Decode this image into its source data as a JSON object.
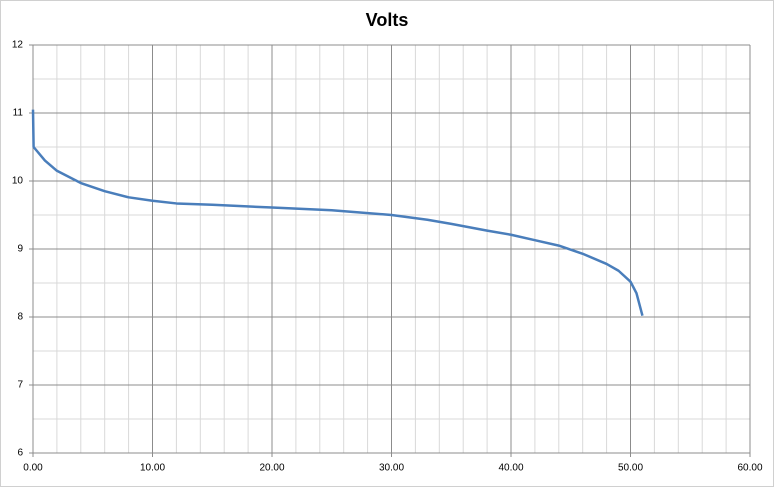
{
  "chart_data": {
    "type": "line",
    "title": "Volts",
    "x": [
      0,
      0.05,
      1,
      2,
      4,
      6,
      8,
      10,
      12,
      15,
      20,
      25,
      30,
      33,
      35,
      38,
      40,
      42,
      44,
      46,
      48,
      49,
      50,
      50.5,
      51
    ],
    "series": [
      {
        "color": "#4a7ebb",
        "values": [
          11.05,
          10.5,
          10.3,
          10.15,
          9.97,
          9.85,
          9.76,
          9.71,
          9.67,
          9.65,
          9.61,
          9.57,
          9.5,
          9.43,
          9.37,
          9.27,
          9.21,
          9.13,
          9.05,
          8.93,
          8.78,
          8.68,
          8.52,
          8.35,
          8.02
        ]
      }
    ],
    "xlim": [
      0,
      60
    ],
    "xticks": [
      {
        "value": 0,
        "label": "0.00"
      },
      {
        "value": 10,
        "label": "10.00"
      },
      {
        "value": 20,
        "label": "20.00"
      },
      {
        "value": 30,
        "label": "30.00"
      },
      {
        "value": 40,
        "label": "40.00"
      },
      {
        "value": 50,
        "label": "50.00"
      },
      {
        "value": 60,
        "label": "60.00"
      }
    ],
    "ylim": [
      6,
      12
    ],
    "yticks": [
      6,
      7,
      8,
      9,
      10,
      11,
      12
    ],
    "grid": true
  }
}
